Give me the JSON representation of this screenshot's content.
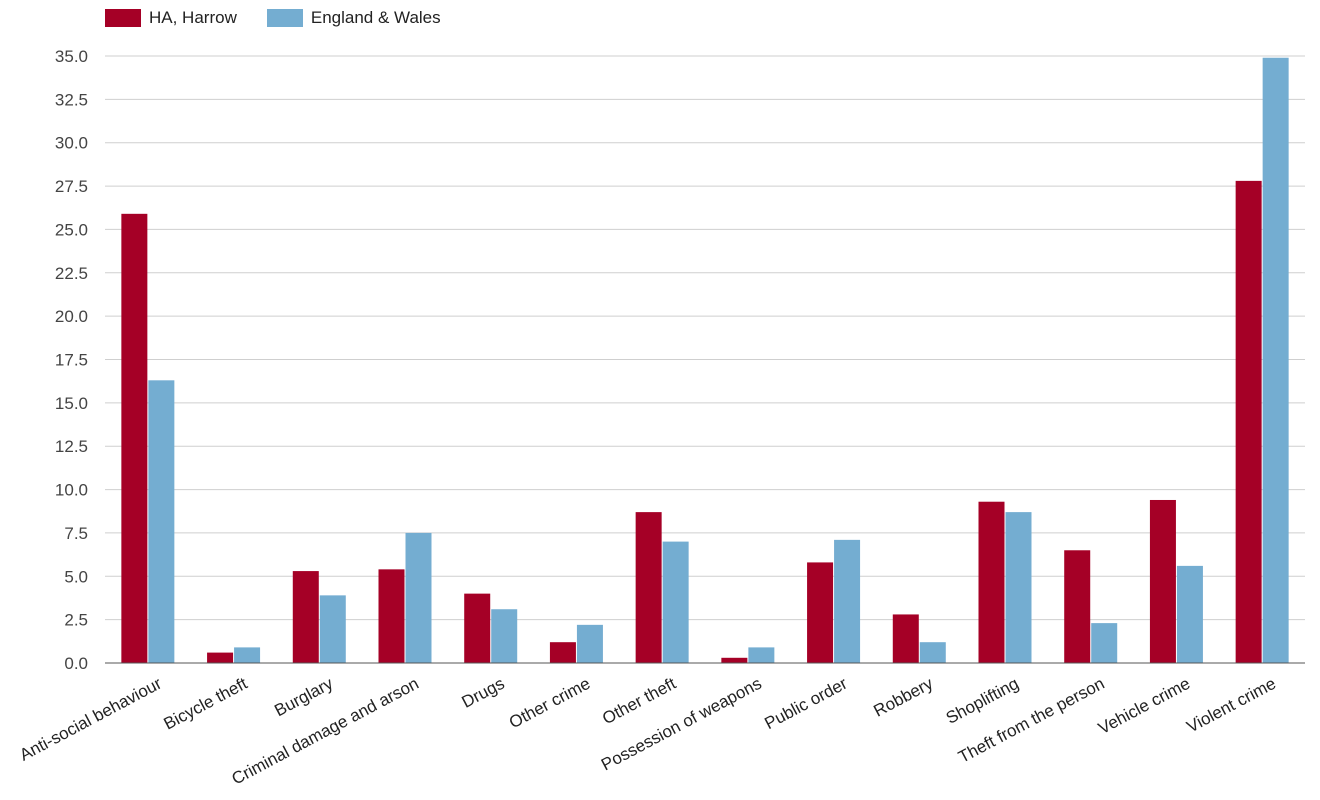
{
  "chart_data": {
    "type": "bar",
    "categories": [
      "Anti-social behaviour",
      "Bicycle theft",
      "Burglary",
      "Criminal damage and arson",
      "Drugs",
      "Other crime",
      "Other theft",
      "Possession of weapons",
      "Public order",
      "Robbery",
      "Shoplifting",
      "Theft from the person",
      "Vehicle crime",
      "Violent crime"
    ],
    "series": [
      {
        "name": "HA, Harrow",
        "color": "#a50026",
        "values": [
          25.9,
          0.6,
          5.3,
          5.4,
          4.0,
          1.2,
          8.7,
          0.3,
          5.8,
          2.8,
          9.3,
          6.5,
          9.4,
          27.8
        ]
      },
      {
        "name": "England & Wales",
        "color": "#74add1",
        "values": [
          16.3,
          0.9,
          3.9,
          7.5,
          3.1,
          2.2,
          7.0,
          0.9,
          7.1,
          1.2,
          8.7,
          2.3,
          5.6,
          34.9
        ]
      }
    ],
    "yticks": [
      "0.0",
      "2.5",
      "5.0",
      "7.5",
      "10.0",
      "12.5",
      "15.0",
      "17.5",
      "20.0",
      "22.5",
      "25.0",
      "27.5",
      "30.0",
      "32.5",
      "35.0"
    ],
    "ylim": [
      0,
      35
    ],
    "grid": true,
    "legend_position": "top-left"
  }
}
